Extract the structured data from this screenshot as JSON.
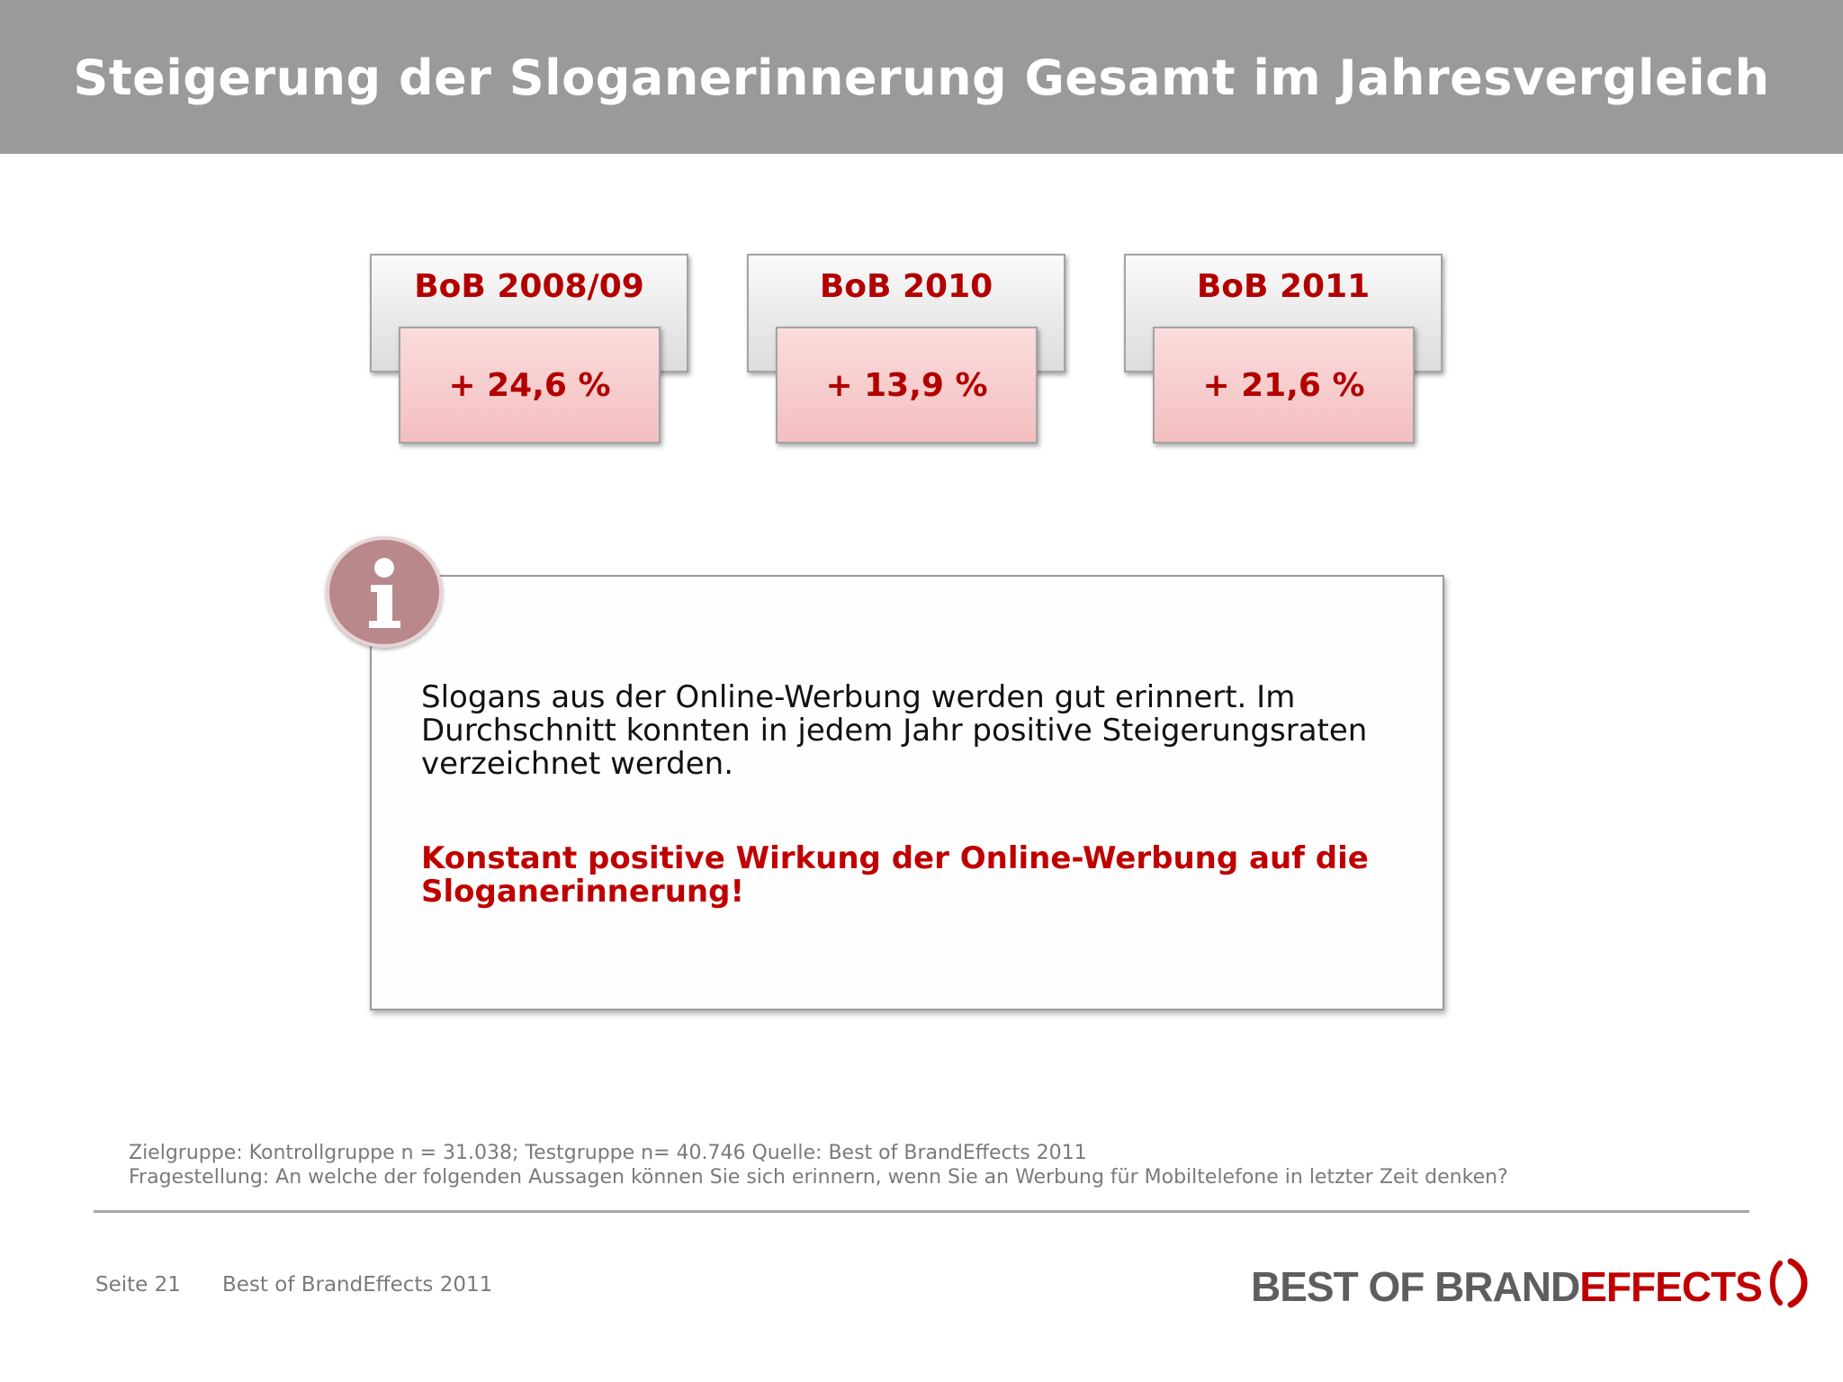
{
  "slide": {
    "title": "Steigerung der Sloganerinnerung Gesamt im Jahresvergleich"
  },
  "cards": [
    {
      "label": "BoB 2008/09",
      "value": "+ 24,6 %"
    },
    {
      "label": "BoB 2010",
      "value": "+ 13,9 %"
    },
    {
      "label": "BoB 2011",
      "value": "+ 21,6 %"
    }
  ],
  "info": {
    "icon": "info-icon",
    "text": "Slogans aus der Online-Werbung werden gut erinnert. Im Durchschnitt konnten in jedem Jahr positive Steigerungsraten verzeichnet werden.",
    "emphasis": "Konstant positive Wirkung der Online-Werbung auf die Sloganerinnerung!"
  },
  "footnote": {
    "line1": "Zielgruppe: Kontrollgruppe n = 31.038; Testgruppe n= 40.746 Quelle: Best of BrandEffects 2011",
    "line2": "Fragestellung: An welche der folgenden Aussagen können Sie sich erinnern, wenn Sie an Werbung für Mobiltelefone in letzter Zeit denken?"
  },
  "footer": {
    "page": "Seite 21",
    "doc_title": "Best of BrandEffects 2011",
    "logo_part1": "BEST OF BRAND",
    "logo_part2": "EFFECTS"
  },
  "colors": {
    "header_bg": "#9a9a9a",
    "accent_red": "#c00000",
    "card_pink": "#f5c7c8",
    "text_gray": "#7a7a7a"
  }
}
